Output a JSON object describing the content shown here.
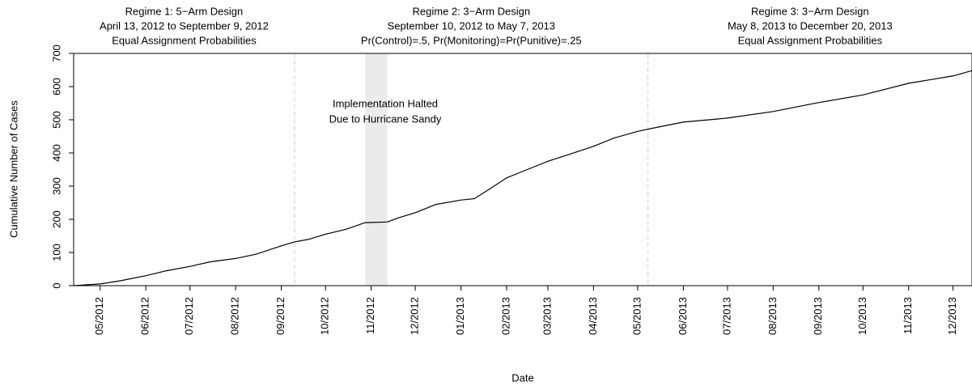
{
  "chart_data": {
    "type": "line",
    "y_label": "Cumulative Number of Cases",
    "x_label": "Date",
    "ylim": [
      0,
      700
    ],
    "yticks": [
      0,
      100,
      200,
      300,
      400,
      500,
      600,
      700
    ],
    "xlim": [
      "2012-04-13",
      "2013-12-14"
    ],
    "xticks": [
      {
        "value": "2012-05-01",
        "label": "05/2012"
      },
      {
        "value": "2012-06-01",
        "label": "06/2012"
      },
      {
        "value": "2012-07-01",
        "label": "07/2012"
      },
      {
        "value": "2012-08-01",
        "label": "08/2012"
      },
      {
        "value": "2012-09-01",
        "label": "09/2012"
      },
      {
        "value": "2012-10-01",
        "label": "10/2012"
      },
      {
        "value": "2012-11-01",
        "label": "11/2012"
      },
      {
        "value": "2012-12-01",
        "label": "12/2012"
      },
      {
        "value": "2013-01-01",
        "label": "01/2013"
      },
      {
        "value": "2013-02-01",
        "label": "02/2013"
      },
      {
        "value": "2013-03-01",
        "label": "03/2013"
      },
      {
        "value": "2013-04-01",
        "label": "04/2013"
      },
      {
        "value": "2013-05-01",
        "label": "05/2013"
      },
      {
        "value": "2013-06-01",
        "label": "06/2013"
      },
      {
        "value": "2013-07-01",
        "label": "07/2013"
      },
      {
        "value": "2013-08-01",
        "label": "08/2013"
      },
      {
        "value": "2013-09-01",
        "label": "09/2013"
      },
      {
        "value": "2013-10-01",
        "label": "10/2013"
      },
      {
        "value": "2013-11-01",
        "label": "11/2013"
      },
      {
        "value": "2013-12-01",
        "label": "12/2013"
      }
    ],
    "regimes": [
      {
        "lines": [
          "Regime 1: 5−Arm Design",
          "April 13, 2012 to September 9, 2012",
          "Equal Assignment Probabilities"
        ],
        "start": "2012-04-13",
        "end": "2012-09-10"
      },
      {
        "lines": [
          "Regime 2: 3−Arm Design",
          "September 10, 2012 to May 7, 2013",
          "Pr(Control)=.5, Pr(Monitoring)=Pr(Punitive)=.25"
        ],
        "start": "2012-09-10",
        "end": "2013-05-08"
      },
      {
        "lines": [
          "Regime 3: 3−Arm Design",
          "May 8, 2013 to December 20, 2013",
          "Equal Assignment Probabilities"
        ],
        "start": "2013-05-08",
        "end": "2013-12-20"
      }
    ],
    "boundaries": [
      "2012-09-10",
      "2013-05-08"
    ],
    "shaded_span": {
      "start": "2012-10-28",
      "end": "2012-11-12",
      "lines": [
        "Implementation Halted",
        "Due to Hurricane Sandy"
      ]
    },
    "series": [
      {
        "color": "#000000",
        "x": [
          "2012-04-13",
          "2012-05-01",
          "2012-05-15",
          "2012-06-01",
          "2012-06-15",
          "2012-07-01",
          "2012-07-15",
          "2012-08-01",
          "2012-08-15",
          "2012-09-01",
          "2012-09-10",
          "2012-09-20",
          "2012-10-01",
          "2012-10-15",
          "2012-10-28",
          "2012-11-12",
          "2012-11-20",
          "2012-12-01",
          "2012-12-15",
          "2013-01-01",
          "2013-01-10",
          "2013-01-20",
          "2013-02-01",
          "2013-02-15",
          "2013-03-01",
          "2013-03-15",
          "2013-04-01",
          "2013-04-15",
          "2013-05-01",
          "2013-05-15",
          "2013-06-01",
          "2013-07-01",
          "2013-08-01",
          "2013-09-01",
          "2013-10-01",
          "2013-11-01",
          "2013-12-01",
          "2013-12-14"
        ],
        "values": [
          0,
          5,
          15,
          30,
          45,
          58,
          72,
          82,
          95,
          120,
          132,
          140,
          155,
          170,
          190,
          192,
          205,
          220,
          245,
          258,
          262,
          290,
          325,
          350,
          375,
          395,
          420,
          445,
          465,
          478,
          493,
          505,
          525,
          552,
          575,
          610,
          632,
          648
        ]
      }
    ]
  }
}
